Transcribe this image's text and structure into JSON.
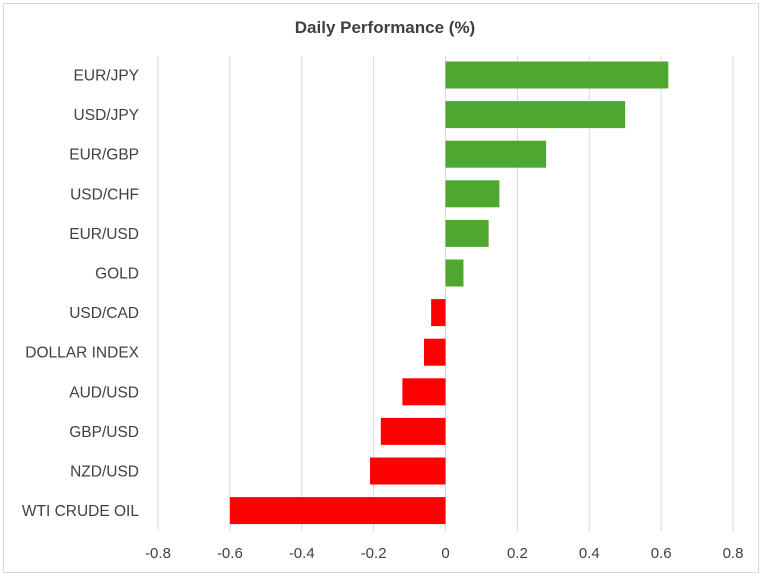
{
  "chart_data": {
    "type": "bar",
    "orientation": "horizontal",
    "title": "Daily Performance (%)",
    "xlabel": "",
    "ylabel": "",
    "xlim": [
      -0.8,
      0.8
    ],
    "xticks": [
      -0.8,
      -0.6,
      -0.4,
      -0.2,
      0,
      0.2,
      0.4,
      0.6,
      0.8
    ],
    "xtick_labels": [
      "-0.8",
      "-0.6",
      "-0.4",
      "-0.2",
      "0",
      "0.2",
      "0.4",
      "0.6",
      "0.8"
    ],
    "grid": "vertical",
    "legend": "none",
    "categories": [
      "EUR/JPY",
      "USD/JPY",
      "EUR/GBP",
      "USD/CHF",
      "EUR/USD",
      "GOLD",
      "USD/CAD",
      "DOLLAR INDEX",
      "AUD/USD",
      "GBP/USD",
      "NZD/USD",
      "WTI CRUDE OIL"
    ],
    "values": [
      0.62,
      0.5,
      0.28,
      0.15,
      0.12,
      0.05,
      -0.04,
      -0.06,
      -0.12,
      -0.18,
      -0.21,
      -0.6
    ],
    "colors": {
      "positive": "#4ea72e",
      "negative": "#ff0000",
      "grid": "#d9d9d9"
    }
  }
}
